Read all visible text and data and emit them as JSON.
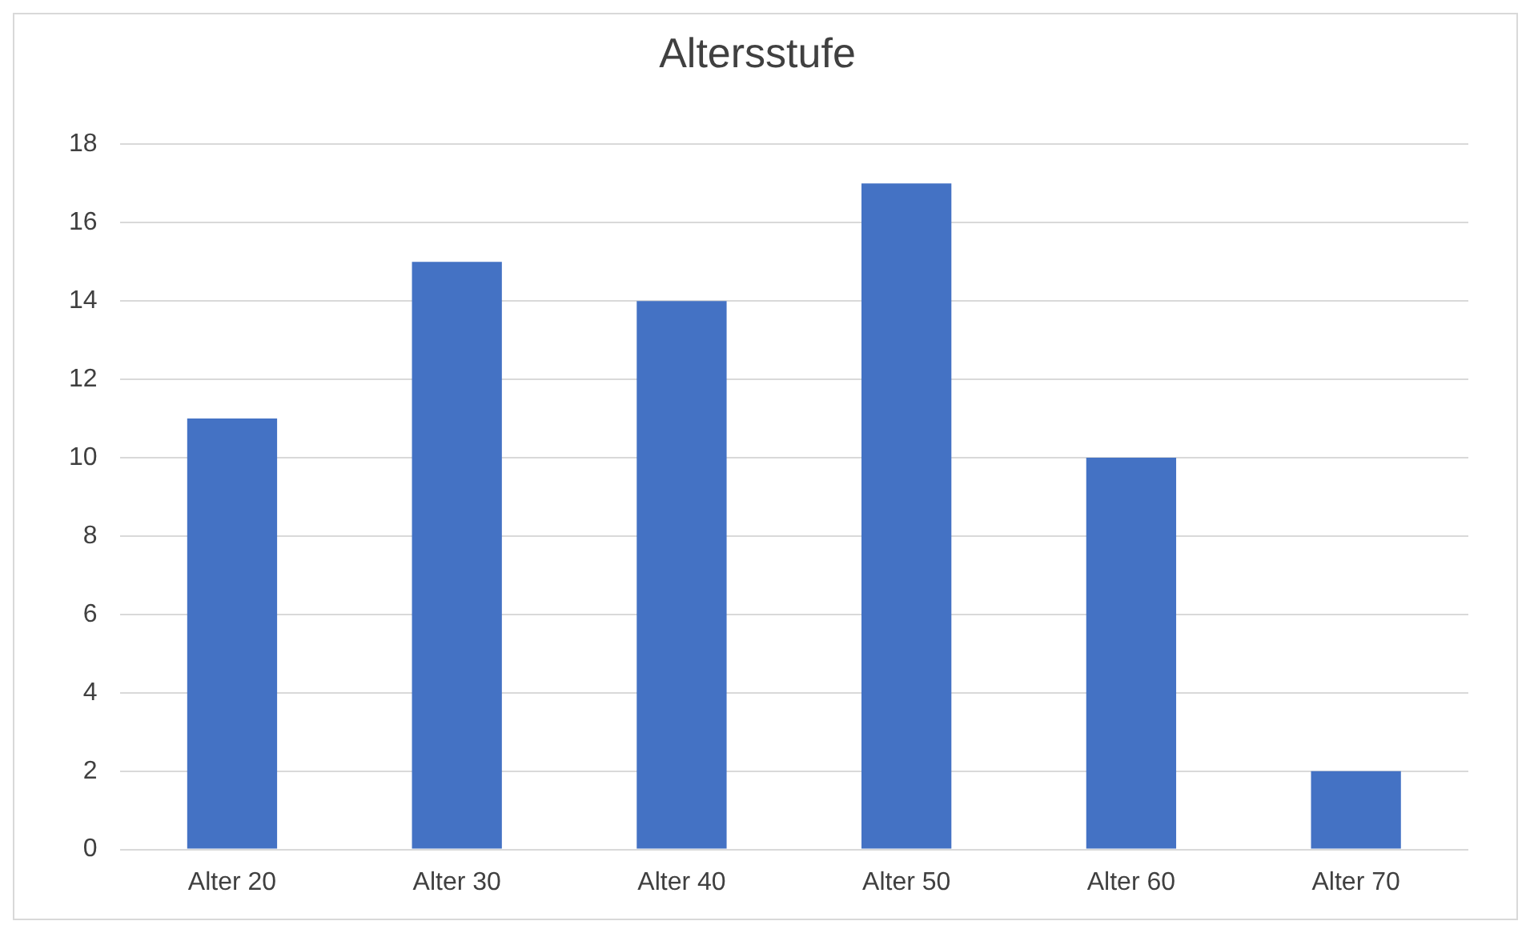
{
  "chart_data": {
    "type": "bar",
    "title": "Altersstufe",
    "categories": [
      "Alter 20",
      "Alter 30",
      "Alter 40",
      "Alter 50",
      "Alter 60",
      "Alter 70"
    ],
    "values": [
      11,
      15,
      14,
      17,
      10,
      2
    ],
    "color": "#4472c4",
    "ylim": [
      0,
      18
    ],
    "yticks": [
      0,
      2,
      4,
      6,
      8,
      10,
      12,
      14,
      16,
      18
    ],
    "grid": "y",
    "legend": false
  }
}
